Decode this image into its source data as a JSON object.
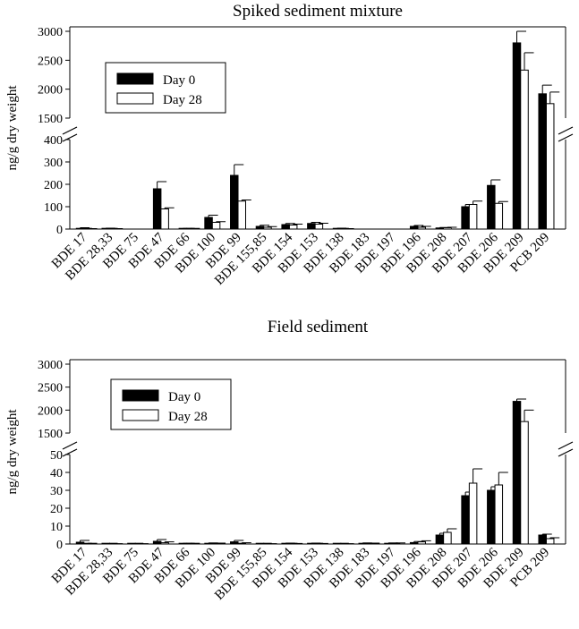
{
  "chart_data": [
    {
      "type": "bar",
      "title": "Spiked sediment mixture",
      "ylabel": "ng/g dry weight",
      "xlabel": "",
      "broken_axis": true,
      "ylim_lower": [
        0,
        400
      ],
      "ylim_upper": [
        1500,
        3000
      ],
      "yticks_lower": [
        "0",
        "100",
        "200",
        "300",
        "400"
      ],
      "yticks_upper": [
        "1500",
        "2000",
        "2500",
        "3000"
      ],
      "legend_position": "upper-left",
      "categories": [
        "BDE 17",
        "BDE 28,33",
        "BDE 75",
        "BDE 47",
        "BDE 66",
        "BDE 100",
        "BDE 99",
        "BDE 155,85",
        "BDE 154",
        "BDE 153",
        "BDE 138",
        "BDE 183",
        "BDE 197",
        "BDE 196",
        "BDE 208",
        "BDE 207",
        "BDE 206",
        "BDE 209",
        "PCB 209"
      ],
      "series": [
        {
          "name": "Day 0",
          "color": "#000000",
          "values": [
            3,
            2,
            0,
            180,
            2,
            52,
            240,
            12,
            20,
            25,
            2,
            0,
            0,
            12,
            5,
            100,
            195,
            2800,
            1920
          ],
          "errors": [
            3,
            2,
            0,
            32,
            1,
            10,
            48,
            5,
            5,
            5,
            2,
            0,
            0,
            4,
            2,
            10,
            25,
            400,
            150
          ]
        },
        {
          "name": "Day 28",
          "color": "#ffffff",
          "values": [
            1,
            1,
            0,
            90,
            2,
            30,
            125,
            8,
            18,
            22,
            1,
            0,
            0,
            8,
            6,
            110,
            115,
            2330,
            1750
          ],
          "errors": [
            1,
            1,
            0,
            5,
            1,
            3,
            5,
            3,
            4,
            4,
            1,
            0,
            0,
            4,
            2,
            15,
            8,
            300,
            200
          ]
        }
      ]
    },
    {
      "type": "bar",
      "title": "Field sediment",
      "ylabel": "ng/g dry weight",
      "xlabel": "",
      "broken_axis": true,
      "ylim_lower": [
        0,
        50
      ],
      "ylim_upper": [
        1500,
        3000
      ],
      "yticks_lower": [
        "0",
        "10",
        "20",
        "30",
        "40",
        "50"
      ],
      "yticks_upper": [
        "1500",
        "2000",
        "2500",
        "3000"
      ],
      "legend_position": "upper-left",
      "categories": [
        "BDE 17",
        "BDE 28,33",
        "BDE 75",
        "BDE 47",
        "BDE 66",
        "BDE 100",
        "BDE 99",
        "BDE 155,85",
        "BDE 154",
        "BDE 153",
        "BDE 138",
        "BDE 183",
        "BDE 197",
        "BDE 196",
        "BDE 208",
        "BDE 207",
        "BDE 206",
        "BDE 209",
        "PCB 209"
      ],
      "series": [
        {
          "name": "Day 0",
          "color": "#000000",
          "values": [
            1,
            0.1,
            0.1,
            1.5,
            0.2,
            0.4,
            1.2,
            0.1,
            0.3,
            0.3,
            0.1,
            0.4,
            0.4,
            0.8,
            5,
            27,
            30,
            2190,
            5
          ],
          "errors": [
            1,
            0.1,
            0.1,
            1,
            0.2,
            0.2,
            0.8,
            0.1,
            0.2,
            0.2,
            0.1,
            0.2,
            0.2,
            0.6,
            1,
            2,
            2,
            50,
            0.5
          ]
        },
        {
          "name": "Day 28",
          "color": "#ffffff",
          "values": [
            0.2,
            0.1,
            0.1,
            0.7,
            0.2,
            0.3,
            0.4,
            0.1,
            0.2,
            0.2,
            0.1,
            0.3,
            0.4,
            1.2,
            6.5,
            34,
            33,
            1750,
            3
          ],
          "errors": [
            0.2,
            0.1,
            0.1,
            0.5,
            0.2,
            0.2,
            0.3,
            0.1,
            0.1,
            0.1,
            0.1,
            0.2,
            0.2,
            0.6,
            2,
            8,
            7,
            250,
            0.5
          ]
        }
      ]
    }
  ]
}
